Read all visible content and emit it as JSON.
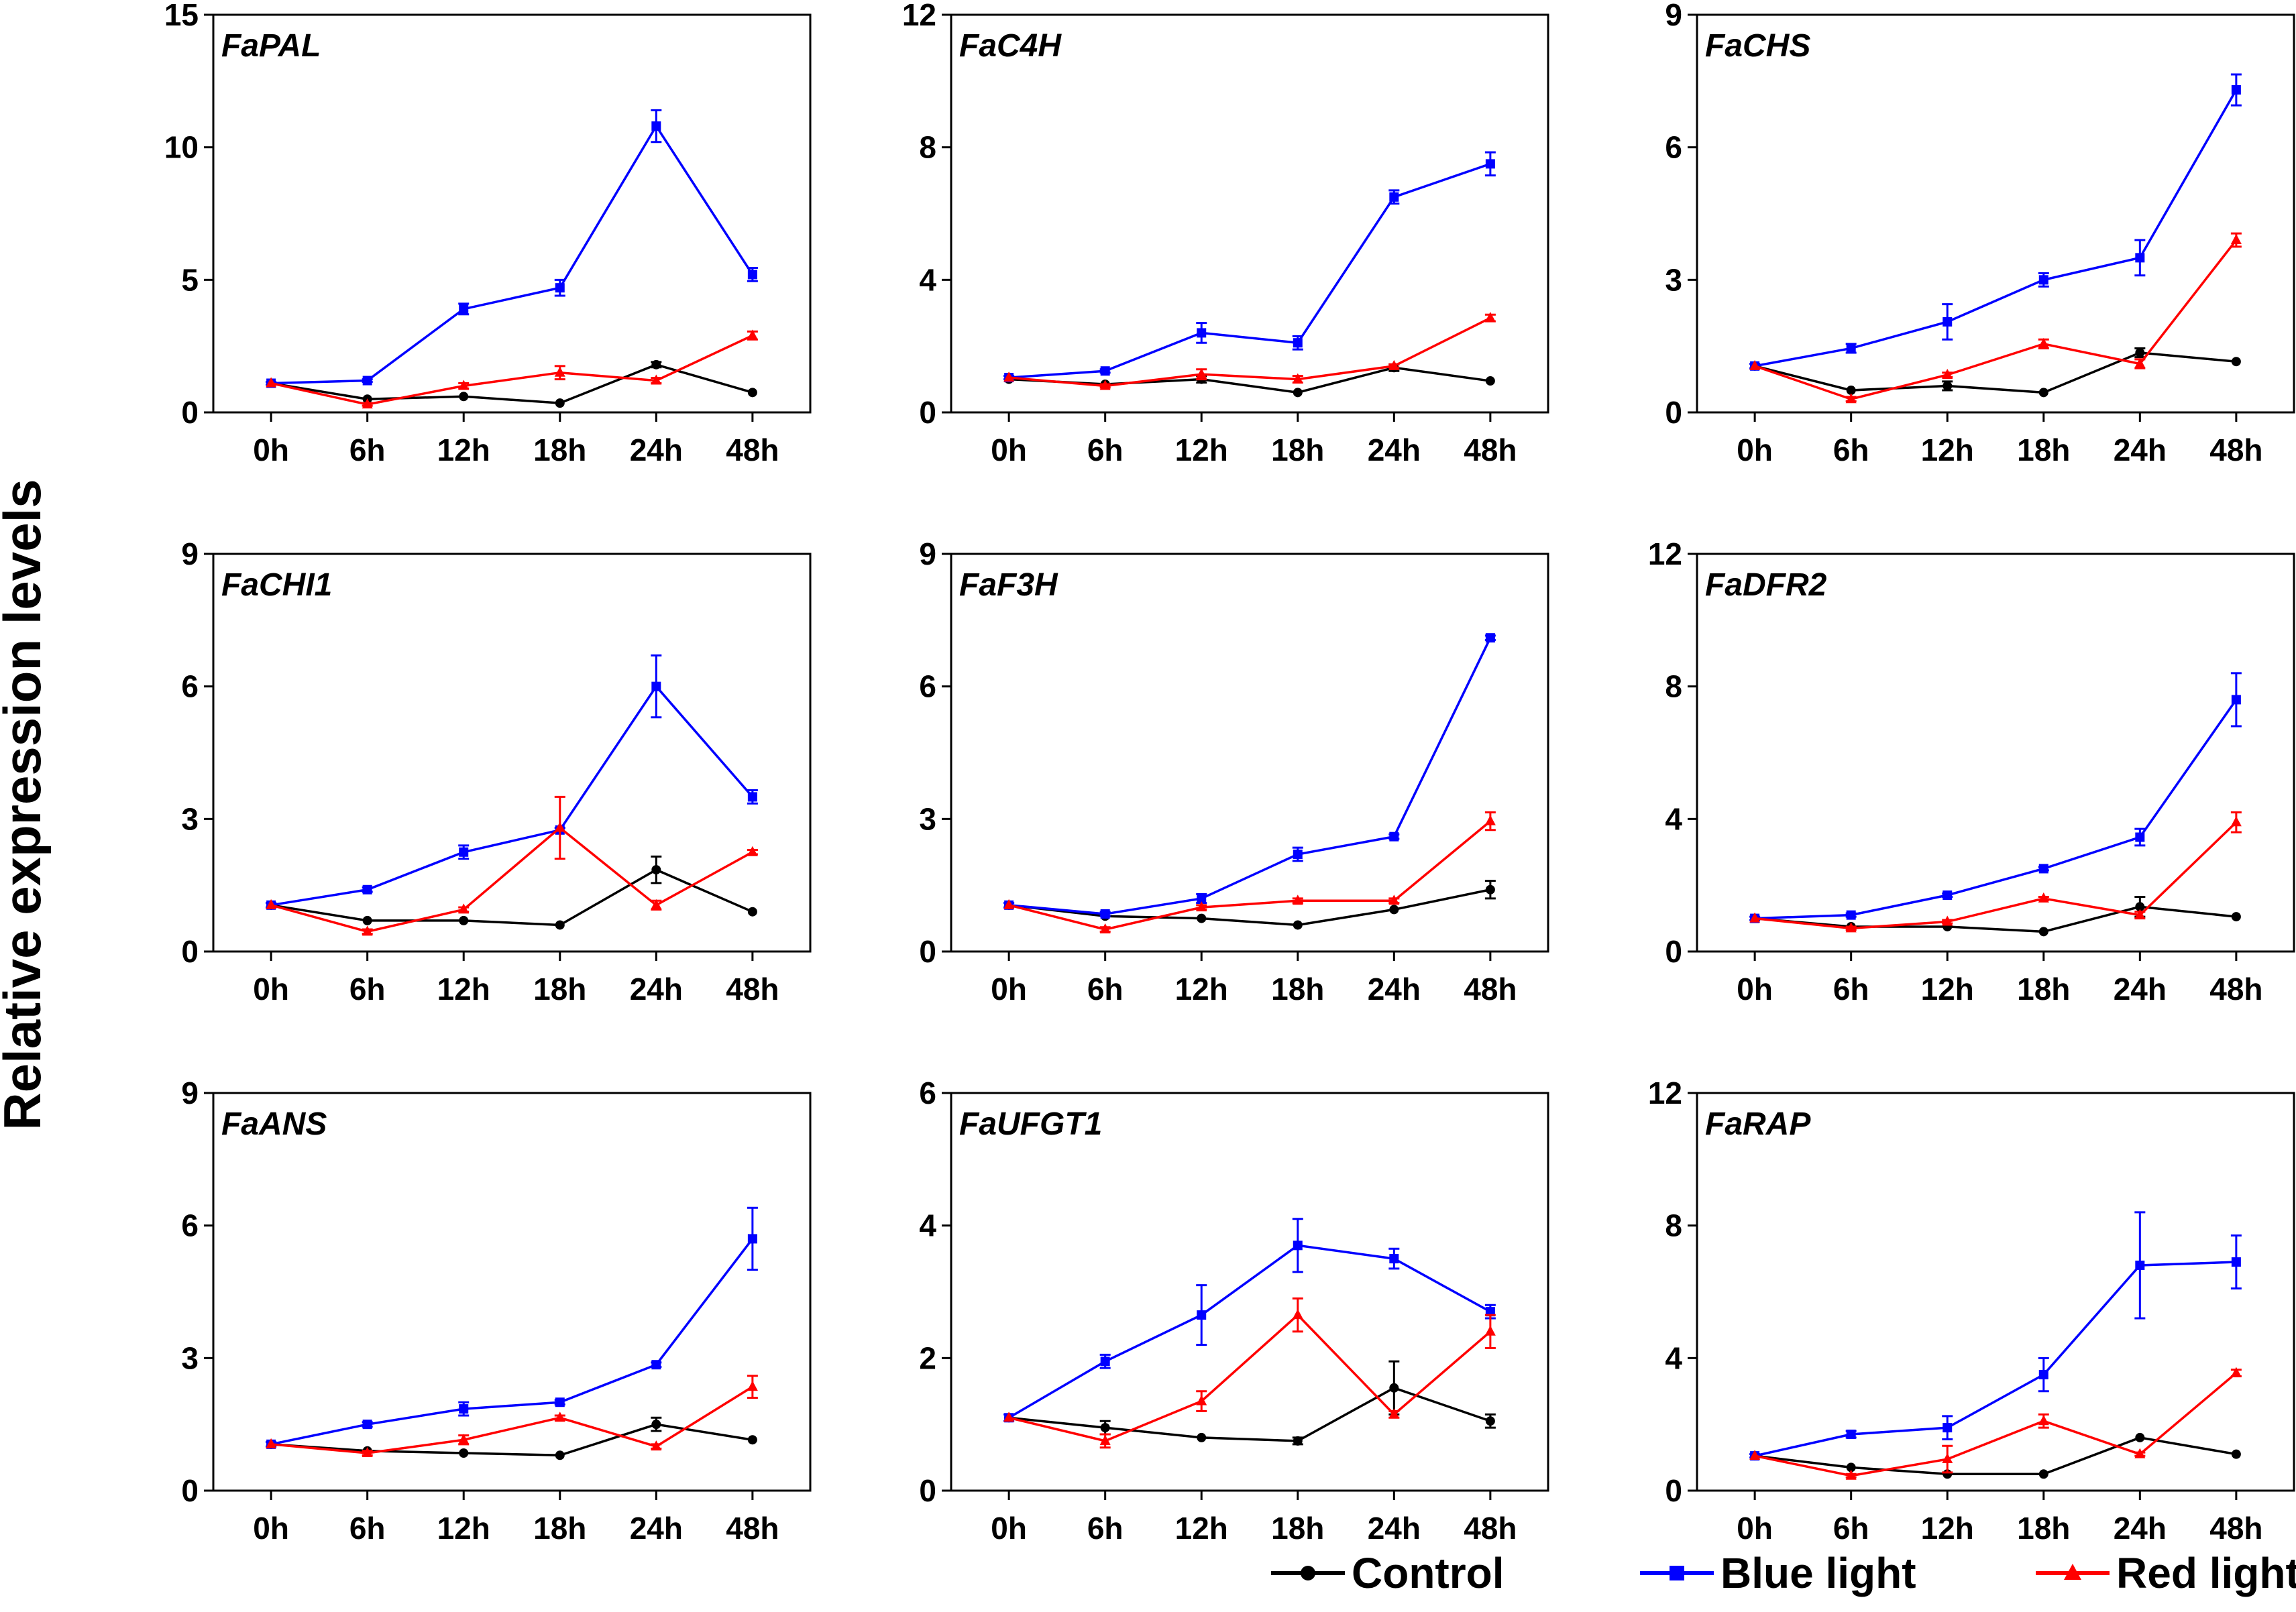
{
  "chart_data": {
    "type": "line",
    "ylabel": "Relative expression levels",
    "categories": [
      "0h",
      "6h",
      "12h",
      "18h",
      "24h",
      "48h"
    ],
    "legend": [
      {
        "name": "Control",
        "color": "#000000",
        "marker": "circle"
      },
      {
        "name": "Blue light",
        "color": "#0000ff",
        "marker": "square"
      },
      {
        "name": "Red light",
        "color": "#ff0000",
        "marker": "triangle"
      }
    ],
    "panels": [
      {
        "title": "FaPAL",
        "ylim": [
          0,
          15
        ],
        "yticks": [
          0,
          5,
          10,
          15
        ],
        "series": [
          {
            "name": "Control",
            "values": [
              1.1,
              0.5,
              0.6,
              0.35,
              1.8,
              0.75
            ],
            "errors": [
              0,
              0,
              0,
              0,
              0.1,
              0
            ]
          },
          {
            "name": "Blue light",
            "values": [
              1.1,
              1.2,
              3.9,
              4.7,
              10.8,
              5.2
            ],
            "errors": [
              0.05,
              0.05,
              0.2,
              0.3,
              0.6,
              0.25
            ]
          },
          {
            "name": "Red light",
            "values": [
              1.1,
              0.3,
              1.0,
              1.5,
              1.2,
              2.9
            ],
            "errors": [
              0,
              0.05,
              0.1,
              0.25,
              0.1,
              0.15
            ]
          }
        ]
      },
      {
        "title": "FaC4H",
        "ylim": [
          0,
          12
        ],
        "yticks": [
          0,
          4,
          8,
          12
        ],
        "series": [
          {
            "name": "Control",
            "values": [
              1.0,
              0.85,
              1.0,
              0.6,
              1.35,
              0.95
            ],
            "errors": [
              0,
              0,
              0.1,
              0,
              0.1,
              0
            ]
          },
          {
            "name": "Blue light",
            "values": [
              1.05,
              1.25,
              2.4,
              2.1,
              6.5,
              7.5
            ],
            "errors": [
              0.05,
              0.05,
              0.3,
              0.2,
              0.2,
              0.35
            ]
          },
          {
            "name": "Red light",
            "values": [
              1.05,
              0.8,
              1.15,
              1.0,
              1.4,
              2.85
            ],
            "errors": [
              0,
              0.05,
              0.15,
              0.1,
              0.05,
              0.1
            ]
          }
        ]
      },
      {
        "title": "FaCHS",
        "ylim": [
          0,
          9
        ],
        "yticks": [
          0,
          3,
          6,
          9
        ],
        "series": [
          {
            "name": "Control",
            "values": [
              1.05,
              0.5,
              0.6,
              0.45,
              1.35,
              1.15
            ],
            "errors": [
              0,
              0,
              0.1,
              0,
              0.1,
              0
            ]
          },
          {
            "name": "Blue light",
            "values": [
              1.05,
              1.45,
              2.05,
              3.0,
              3.5,
              7.3
            ],
            "errors": [
              0.05,
              0.1,
              0.4,
              0.15,
              0.4,
              0.35
            ]
          },
          {
            "name": "Red light",
            "values": [
              1.05,
              0.3,
              0.85,
              1.55,
              1.1,
              3.9
            ],
            "errors": [
              0,
              0.05,
              0.05,
              0.1,
              0.1,
              0.15
            ]
          }
        ]
      },
      {
        "title": "FaCHI1",
        "ylim": [
          0,
          9
        ],
        "yticks": [
          0,
          3,
          6,
          9
        ],
        "series": [
          {
            "name": "Control",
            "values": [
              1.05,
              0.7,
              0.7,
              0.6,
              1.85,
              0.9
            ],
            "errors": [
              0,
              0,
              0,
              0,
              0.3,
              0
            ]
          },
          {
            "name": "Blue light",
            "values": [
              1.05,
              1.4,
              2.25,
              2.75,
              6.0,
              3.5
            ],
            "errors": [
              0.05,
              0.05,
              0.15,
              0.05,
              0.7,
              0.15
            ]
          },
          {
            "name": "Red light",
            "values": [
              1.05,
              0.45,
              0.95,
              2.8,
              1.05,
              2.25
            ],
            "errors": [
              0,
              0.05,
              0.05,
              0.7,
              0.1,
              0.05
            ]
          }
        ]
      },
      {
        "title": "FaF3H",
        "ylim": [
          0,
          9
        ],
        "yticks": [
          0,
          3,
          6,
          9
        ],
        "series": [
          {
            "name": "Control",
            "values": [
              1.05,
              0.8,
              0.75,
              0.6,
              0.95,
              1.4
            ],
            "errors": [
              0,
              0,
              0,
              0,
              0,
              0.2
            ]
          },
          {
            "name": "Blue light",
            "values": [
              1.05,
              0.85,
              1.2,
              2.2,
              2.6,
              7.1
            ],
            "errors": [
              0.05,
              0.05,
              0.1,
              0.15,
              0.05,
              0.05
            ]
          },
          {
            "name": "Red light",
            "values": [
              1.05,
              0.5,
              1.0,
              1.15,
              1.15,
              2.95
            ],
            "errors": [
              0,
              0.05,
              0.05,
              0.05,
              0.05,
              0.2
            ]
          }
        ]
      },
      {
        "title": "FaDFR2",
        "ylim": [
          0,
          12
        ],
        "yticks": [
          0,
          4,
          8,
          12
        ],
        "series": [
          {
            "name": "Control",
            "values": [
              1.0,
              0.75,
              0.75,
              0.6,
              1.35,
              1.05
            ],
            "errors": [
              0,
              0,
              0,
              0,
              0.3,
              0
            ]
          },
          {
            "name": "Blue light",
            "values": [
              1.0,
              1.1,
              1.7,
              2.5,
              3.45,
              7.6
            ],
            "errors": [
              0.05,
              0.05,
              0.05,
              0.05,
              0.25,
              0.8
            ]
          },
          {
            "name": "Red light",
            "values": [
              1.0,
              0.7,
              0.9,
              1.6,
              1.1,
              3.9
            ],
            "errors": [
              0,
              0.05,
              0.05,
              0.05,
              0.1,
              0.3
            ]
          }
        ]
      },
      {
        "title": "FaANS",
        "ylim": [
          0,
          9
        ],
        "yticks": [
          0,
          3,
          6,
          9
        ],
        "series": [
          {
            "name": "Control",
            "values": [
              1.05,
              0.9,
              0.85,
              0.8,
              1.5,
              1.15
            ],
            "errors": [
              0,
              0,
              0,
              0,
              0.15,
              0
            ]
          },
          {
            "name": "Blue light",
            "values": [
              1.05,
              1.5,
              1.85,
              2.0,
              2.85,
              5.7
            ],
            "errors": [
              0.05,
              0.05,
              0.15,
              0.05,
              0.05,
              0.7
            ]
          },
          {
            "name": "Red light",
            "values": [
              1.05,
              0.85,
              1.15,
              1.65,
              1.0,
              2.35
            ],
            "errors": [
              0,
              0.05,
              0.1,
              0.05,
              0.05,
              0.25
            ]
          }
        ]
      },
      {
        "title": "FaUFGT1",
        "ylim": [
          0,
          6
        ],
        "yticks": [
          0,
          2,
          4,
          6
        ],
        "series": [
          {
            "name": "Control",
            "values": [
              1.1,
              0.95,
              0.8,
              0.75,
              1.55,
              1.05
            ],
            "errors": [
              0,
              0.1,
              0,
              0.05,
              0.4,
              0.1
            ]
          },
          {
            "name": "Blue light",
            "values": [
              1.1,
              1.95,
              2.65,
              3.7,
              3.5,
              2.7
            ],
            "errors": [
              0.05,
              0.1,
              0.45,
              0.4,
              0.15,
              0.1
            ]
          },
          {
            "name": "Red light",
            "values": [
              1.1,
              0.75,
              1.35,
              2.65,
              1.15,
              2.4
            ],
            "errors": [
              0,
              0.1,
              0.15,
              0.25,
              0.05,
              0.25
            ]
          }
        ]
      },
      {
        "title": "FaRAP",
        "ylim": [
          0,
          12
        ],
        "yticks": [
          0,
          4,
          8,
          12
        ],
        "series": [
          {
            "name": "Control",
            "values": [
              1.05,
              0.7,
              0.5,
              0.5,
              1.6,
              1.1
            ],
            "errors": [
              0,
              0,
              0,
              0,
              0,
              0
            ]
          },
          {
            "name": "Blue light",
            "values": [
              1.05,
              1.7,
              1.9,
              3.5,
              6.8,
              6.9
            ],
            "errors": [
              0.05,
              0.1,
              0.35,
              0.5,
              1.6,
              0.8
            ]
          },
          {
            "name": "Red light",
            "values": [
              1.05,
              0.45,
              0.95,
              2.1,
              1.1,
              3.55
            ],
            "errors": [
              0,
              0.05,
              0.4,
              0.2,
              0.05,
              0.1
            ]
          }
        ]
      }
    ]
  }
}
